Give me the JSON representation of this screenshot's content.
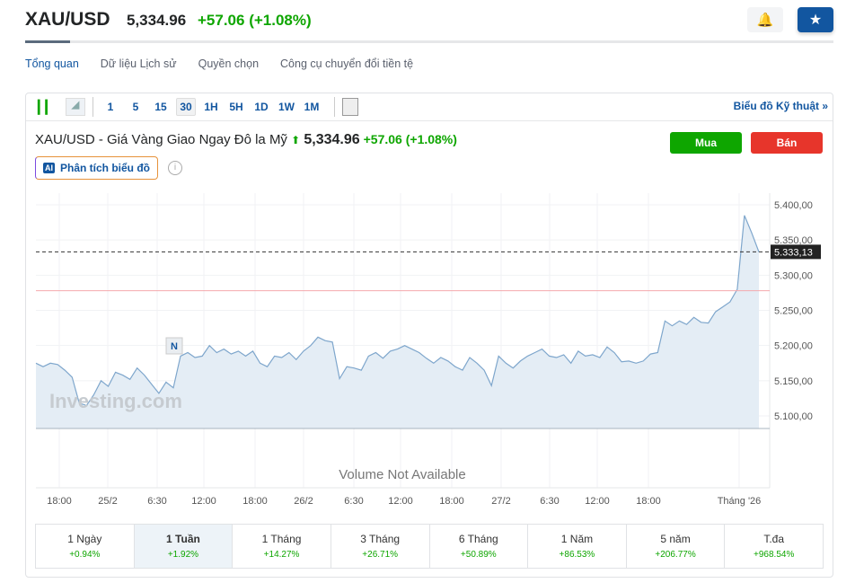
{
  "header": {
    "symbol": "XAU/USD",
    "price": "5,334.96",
    "change": "+57.06 (+1.08%)",
    "alert_icon": "bell-plus-icon",
    "star_icon": "star-icon"
  },
  "nav": [
    "Tổng quan",
    "Dữ liệu Lịch sử",
    "Quyền chọn",
    "Công cụ chuyển đổi tiền tệ"
  ],
  "toolbar": {
    "timeframes": [
      "1",
      "5",
      "15",
      "30",
      "1H",
      "5H",
      "1D",
      "1W",
      "1M"
    ],
    "selected": "30",
    "technical": "Biểu đồ Kỹ thuật »"
  },
  "chart_header": {
    "title": "XAU/USD - Giá Vàng Giao Ngay Đô la Mỹ",
    "price": "5,334.96",
    "change": "+57.06 (+1.08%)",
    "buy": "Mua",
    "sell": "Bán",
    "ai_badge": "AI",
    "ai_label": "Phân tích biểu đồ"
  },
  "chart_data": {
    "type": "area",
    "y_ticks": [
      "5.400,00",
      "5.350,00",
      "5.300,00",
      "5.250,00",
      "5.200,00",
      "5.150,00",
      "5.100,00"
    ],
    "ylim": [
      5082,
      5420
    ],
    "current_label": "5.333,13",
    "current_value": 5333.13,
    "reference_line": 5278,
    "x_ticks": [
      "18:00",
      "25/2",
      "6:30",
      "12:00",
      "18:00",
      "26/2",
      "6:30",
      "12:00",
      "18:00",
      "27/2",
      "6:30",
      "12:00",
      "18:00",
      "Tháng '26"
    ],
    "values": [
      5175,
      5170,
      5175,
      5173,
      5165,
      5155,
      5118,
      5115,
      5130,
      5150,
      5142,
      5162,
      5158,
      5152,
      5168,
      5158,
      5145,
      5132,
      5148,
      5140,
      5185,
      5190,
      5183,
      5185,
      5200,
      5190,
      5195,
      5188,
      5192,
      5185,
      5192,
      5175,
      5170,
      5185,
      5183,
      5190,
      5180,
      5192,
      5200,
      5212,
      5207,
      5205,
      5153,
      5170,
      5168,
      5165,
      5185,
      5190,
      5182,
      5192,
      5195,
      5200,
      5195,
      5190,
      5182,
      5175,
      5183,
      5178,
      5170,
      5165,
      5183,
      5175,
      5165,
      5143,
      5185,
      5175,
      5168,
      5178,
      5185,
      5190,
      5195,
      5185,
      5183,
      5187,
      5175,
      5192,
      5185,
      5187,
      5183,
      5198,
      5190,
      5177,
      5178,
      5175,
      5178,
      5188,
      5190,
      5235,
      5228,
      5235,
      5230,
      5240,
      5233,
      5232,
      5248,
      5255,
      5262,
      5280,
      5385,
      5360,
      5333
    ],
    "marker": "N",
    "volume_text": "Volume Not Available",
    "watermark": "Investing.com",
    "grid": true,
    "line_color": "#7ea6cc",
    "fill_color": "#e4edf5"
  },
  "performance": [
    {
      "label": "1 Ngày",
      "value": "+0.94%"
    },
    {
      "label": "1 Tuần",
      "value": "+1.92%",
      "selected": true
    },
    {
      "label": "1 Tháng",
      "value": "+14.27%"
    },
    {
      "label": "3 Tháng",
      "value": "+26.71%"
    },
    {
      "label": "6 Tháng",
      "value": "+50.89%"
    },
    {
      "label": "1 Năm",
      "value": "+86.53%"
    },
    {
      "label": "5 năm",
      "value": "+206.77%"
    },
    {
      "label": "T.đa",
      "value": "+968.54%"
    }
  ]
}
